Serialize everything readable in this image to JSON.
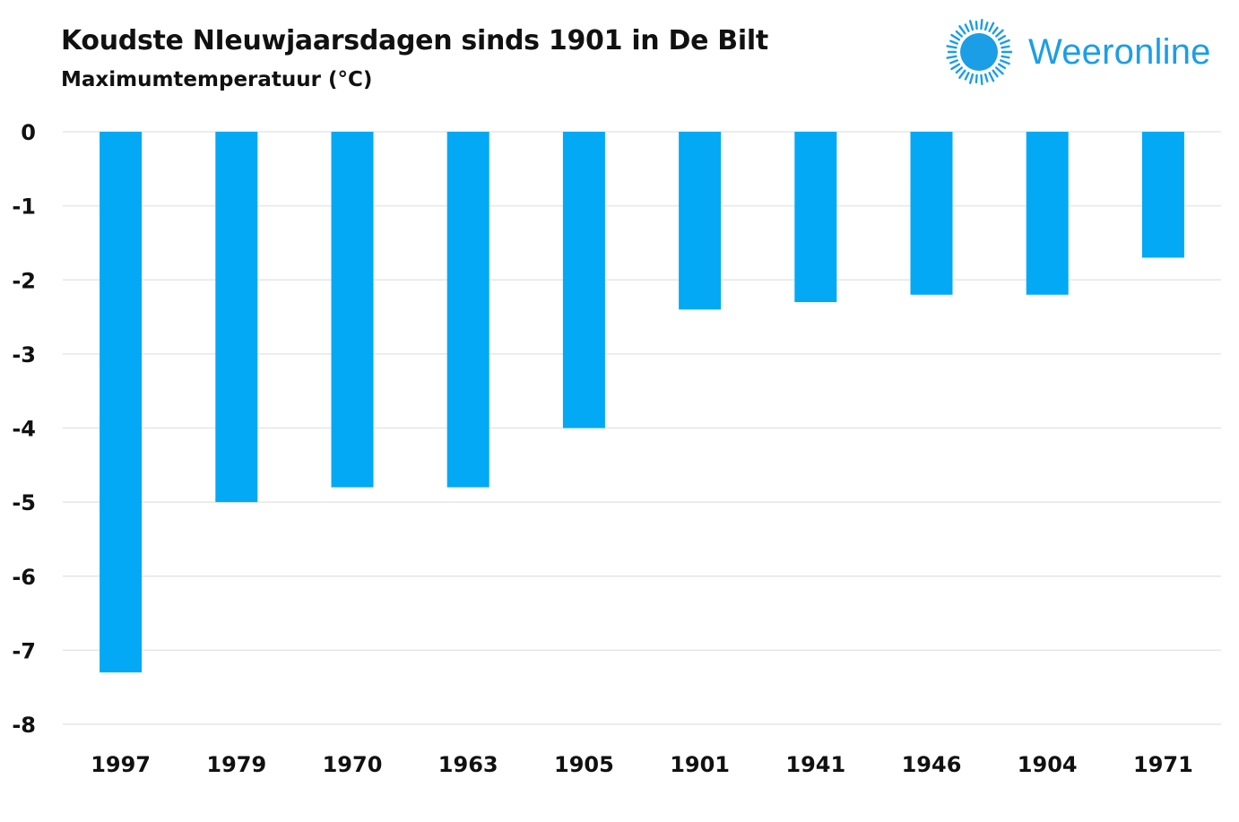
{
  "header": {
    "title": "Koudste NIeuwjaarsdagen sinds 1901 in De Bilt",
    "subtitle": "Maximumtemperatuur (°C)"
  },
  "brand": {
    "name": "Weeronline",
    "logo_icon": "sun-icon",
    "color": "#1b9ee6"
  },
  "chart_data": {
    "type": "bar",
    "title": "Koudste NIeuwjaarsdagen sinds 1901 in De Bilt",
    "subtitle": "Maximumtemperatuur (°C)",
    "xlabel": "",
    "ylabel": "Maximumtemperatuur (°C)",
    "categories": [
      "1997",
      "1979",
      "1970",
      "1963",
      "1905",
      "1901",
      "1941",
      "1946",
      "1904",
      "1971"
    ],
    "values": [
      -7.3,
      -5.0,
      -4.8,
      -4.8,
      -4.0,
      -2.4,
      -2.3,
      -2.2,
      -2.2,
      -1.7
    ],
    "ylim": [
      -8,
      0
    ],
    "yticks": [
      "0",
      "-1",
      "-2",
      "-3",
      "-4",
      "-5",
      "-6",
      "-7",
      "-8"
    ],
    "grid": true,
    "legend": "none",
    "bar_color": "#03a9f4",
    "grid_color": "#e6e6e6"
  }
}
